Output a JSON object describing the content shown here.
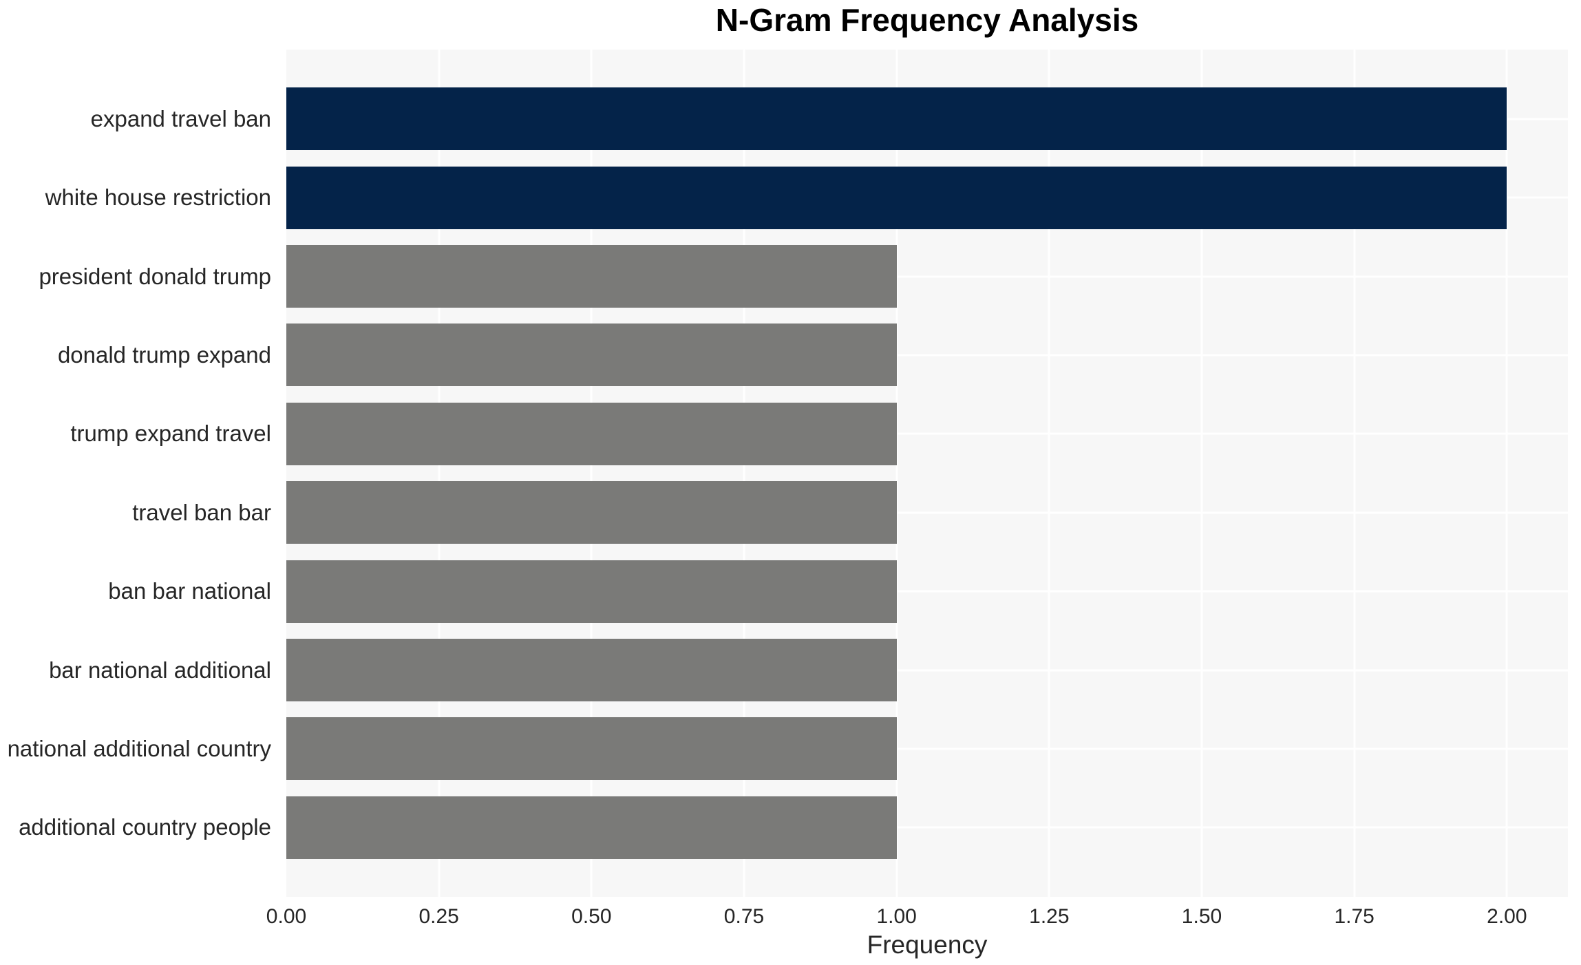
{
  "title": "N-Gram Frequency Analysis",
  "colors": {
    "plot_bg": "#f7f7f7",
    "grid": "#ffffff",
    "bar_highlight": "#042349",
    "bar_default": "#7a7a78",
    "text": "#262626",
    "title_text": "#000000"
  },
  "chart_data": {
    "type": "bar",
    "orientation": "horizontal",
    "title": "N-Gram Frequency Analysis",
    "xlabel": "Frequency",
    "ylabel": "",
    "categories": [
      "expand travel ban",
      "white house restriction",
      "president donald trump",
      "donald trump expand",
      "trump expand travel",
      "travel ban bar",
      "ban bar national",
      "bar national additional",
      "national additional country",
      "additional country people"
    ],
    "values": [
      2,
      2,
      1,
      1,
      1,
      1,
      1,
      1,
      1,
      1
    ],
    "bar_colors": [
      "#042349",
      "#042349",
      "#7a7a78",
      "#7a7a78",
      "#7a7a78",
      "#7a7a78",
      "#7a7a78",
      "#7a7a78",
      "#7a7a78",
      "#7a7a78"
    ],
    "xlim": [
      0,
      2.1
    ],
    "xticks": [
      "0.00",
      "0.25",
      "0.50",
      "0.75",
      "1.00",
      "1.25",
      "1.50",
      "1.75",
      "2.00"
    ],
    "xtick_values": [
      0,
      0.25,
      0.5,
      0.75,
      1.0,
      1.25,
      1.5,
      1.75,
      2.0
    ],
    "grid": true,
    "legend": false
  }
}
